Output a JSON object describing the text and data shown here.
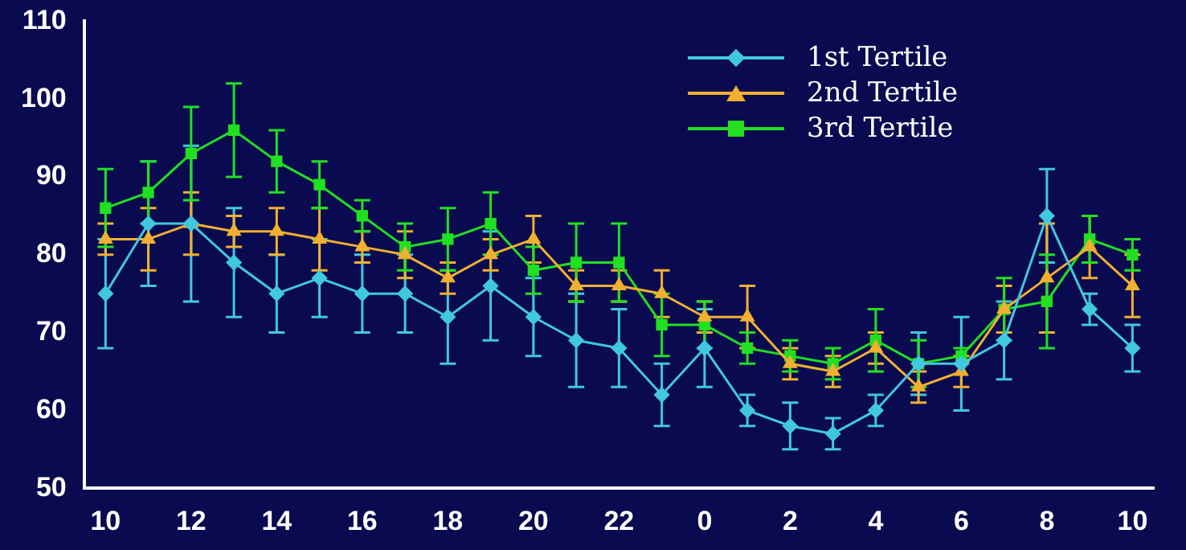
{
  "chart_data": {
    "type": "line",
    "categories": [
      "10",
      null,
      "12",
      null,
      "14",
      null,
      "16",
      null,
      "18",
      null,
      "20",
      null,
      "22",
      null,
      "0",
      null,
      "2",
      null,
      "4",
      null,
      "6",
      null,
      "8",
      null,
      "10"
    ],
    "ylim": [
      50,
      110
    ],
    "yticks": [
      50,
      60,
      70,
      80,
      90,
      100,
      110
    ],
    "grid": false,
    "legend": "top right",
    "line_style": "solid",
    "series": [
      {
        "name": "1st Tertile",
        "color": "#40c8e0",
        "marker": "diamond",
        "values": [
          75,
          84,
          84,
          79,
          75,
          77,
          75,
          75,
          72,
          76,
          72,
          69,
          68,
          62,
          68,
          60,
          58,
          57,
          60,
          66,
          66,
          69,
          85,
          73,
          68
        ],
        "errors": [
          7,
          8,
          10,
          7,
          5,
          5,
          5,
          5,
          6,
          7,
          5,
          6,
          5,
          4,
          5,
          2,
          3,
          2,
          2,
          4,
          6,
          5,
          6,
          2,
          3
        ]
      },
      {
        "name": "2nd Tertile",
        "color": "#f0b030",
        "marker": "triangle",
        "values": [
          82,
          82,
          84,
          83,
          83,
          82,
          81,
          80,
          77,
          80,
          82,
          76,
          76,
          75,
          72,
          72,
          66,
          65,
          68,
          63,
          65,
          73,
          77,
          81,
          76
        ],
        "errors": [
          2,
          4,
          4,
          2,
          3,
          4,
          2,
          3,
          2,
          2,
          3,
          2,
          2,
          3,
          2,
          4,
          2,
          2,
          2,
          2,
          2,
          3,
          7,
          4,
          4
        ]
      },
      {
        "name": "3rd Tertile",
        "color": "#20e020",
        "marker": "square",
        "values": [
          86,
          88,
          93,
          96,
          92,
          89,
          85,
          81,
          82,
          84,
          78,
          79,
          79,
          71,
          71,
          68,
          67,
          66,
          69,
          66,
          67,
          73,
          74,
          82,
          80
        ],
        "errors": [
          5,
          4,
          6,
          6,
          4,
          3,
          2,
          3,
          4,
          4,
          3,
          5,
          5,
          4,
          3,
          2,
          2,
          2,
          4,
          3,
          1,
          4,
          6,
          3,
          2
        ]
      }
    ]
  }
}
